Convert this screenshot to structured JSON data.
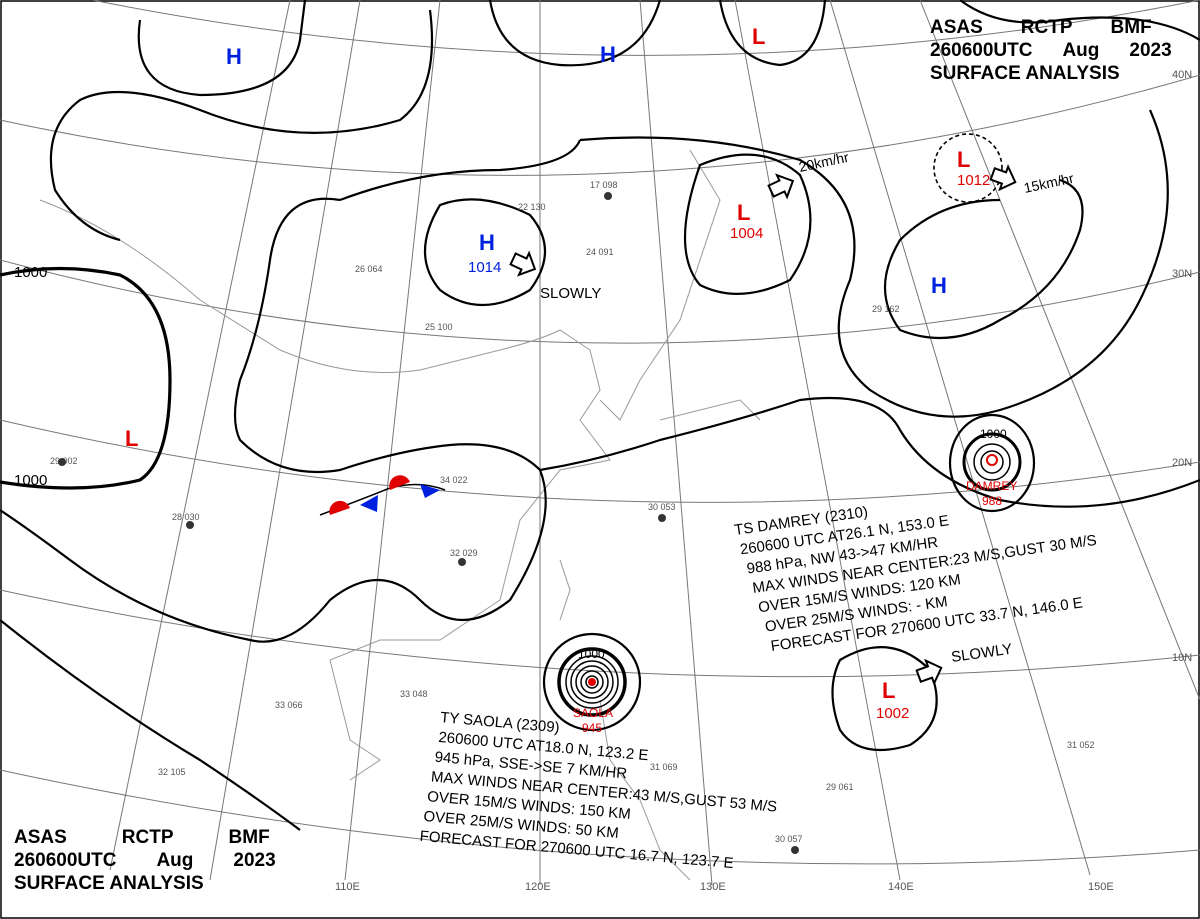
{
  "header_top_right": {
    "line1": [
      "ASAS",
      "RCTP",
      "BMF"
    ],
    "line2": [
      "260600UTC",
      "Aug",
      "2023"
    ],
    "line3": "SURFACE ANALYSIS"
  },
  "header_bottom_left": {
    "line1": [
      "ASAS",
      "RCTP",
      "BMF"
    ],
    "line2": [
      "260600UTC",
      "Aug",
      "2023"
    ],
    "line3": "SURFACE ANALYSIS"
  },
  "colors": {
    "high": "#0020e0",
    "low": "#e00000",
    "isobar": "#000000",
    "grid": "#777777"
  },
  "latitude_labels": [
    "40N",
    "30N",
    "20N",
    "10N"
  ],
  "longitude_labels": [
    "110E",
    "120E",
    "130E",
    "140E",
    "150E"
  ],
  "isobar_labels": [
    "1000",
    "1000",
    "1000",
    "1000"
  ],
  "pressure_centers": [
    {
      "type": "H",
      "value": ""
    },
    {
      "type": "H",
      "value": ""
    },
    {
      "type": "H",
      "value": "1014"
    },
    {
      "type": "H",
      "value": ""
    },
    {
      "type": "L",
      "value": ""
    },
    {
      "type": "L",
      "value": "1004"
    },
    {
      "type": "L",
      "value": "1012"
    },
    {
      "type": "L",
      "value": ""
    },
    {
      "type": "L",
      "value": "1002"
    }
  ],
  "motions": [
    "SLOWLY",
    "20km/hr",
    "15km/hr",
    "SLOWLY"
  ],
  "storms": {
    "damrey": {
      "name": "DAMREY",
      "pressure": "988",
      "isobar": "1000",
      "lines": [
        "TS  DAMREY (2310)",
        "260600 UTC  AT26.1 N, 153.0 E",
        "988 hPa, NW  43->47 KM/HR",
        "MAX WINDS NEAR CENTER:23 M/S,GUST 30 M/S",
        "OVER 15M/S WINDS: 120 KM",
        "OVER 25M/S WINDS: - KM",
        "FORECAST FOR 270600 UTC 33.7 N, 146.0 E"
      ]
    },
    "saola": {
      "name": "SAOLA",
      "pressure": "945",
      "isobar": "1000",
      "lines": [
        "TY  SAOLA  (2309)",
        "260600 UTC  AT18.0 N, 123.2 E",
        "945 hPa, SSE->SE  7 KM/HR",
        "MAX WINDS NEAR CENTER:43 M/S,GUST 53 M/S",
        "OVER 15M/S WINDS: 150 KM",
        "OVER 25M/S WINDS: 50 KM",
        "FORECAST FOR 270600 UTC 16.7 N, 123.7 E"
      ]
    }
  },
  "stations": [
    "28 030",
    "32 029",
    "34 022",
    "30 053",
    "33 048",
    "31 069",
    "30 057",
    "31 052",
    "29 061",
    "26 064",
    "25 100",
    "24 091",
    "17 098",
    "22 130",
    "29 162",
    "29 002",
    "33 066",
    "32 105"
  ]
}
